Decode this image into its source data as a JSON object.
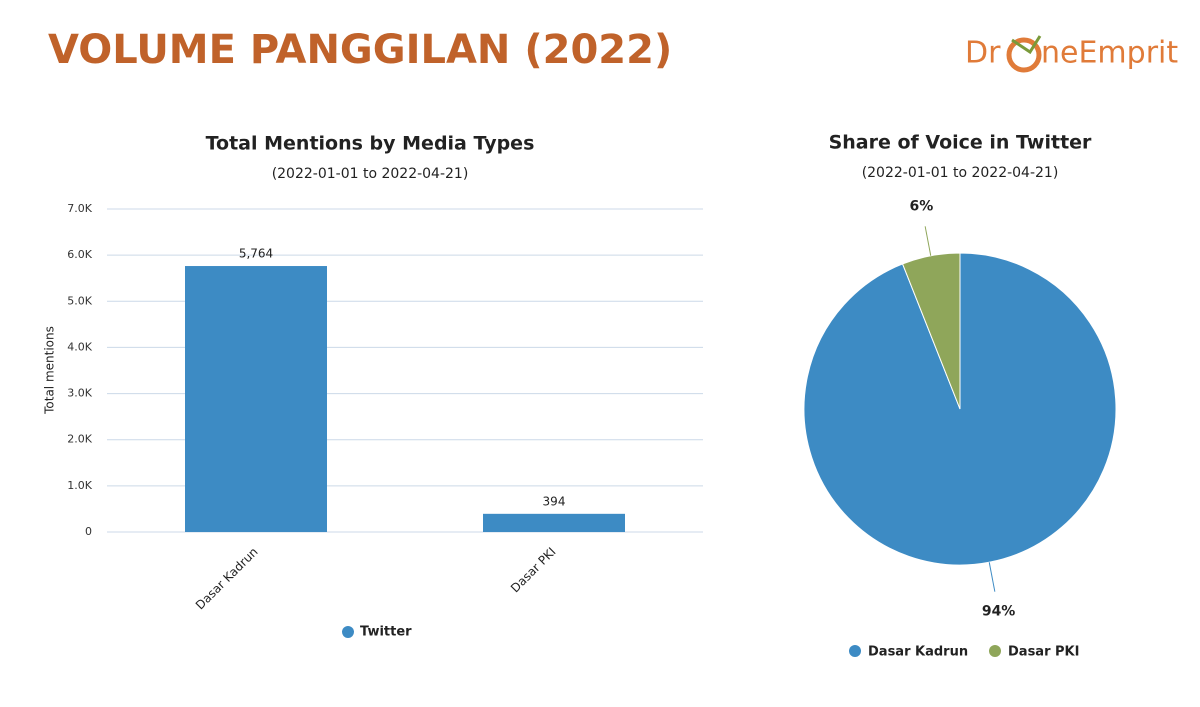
{
  "header": {
    "title": "VOLUME PANGGILAN (2022)",
    "logo_left": "Dr",
    "logo_right": "neEmprit"
  },
  "chart_data": [
    {
      "type": "bar",
      "title": "Total Mentions by Media Types",
      "subtitle": "(2022-01-01 to 2022-04-21)",
      "y_label": "Total mentions",
      "categories": [
        "Dasar Kadrun",
        "Dasar PKI"
      ],
      "series": [
        {
          "name": "Twitter",
          "color": "#3d8bc4",
          "values": [
            5764,
            394
          ],
          "value_labels": [
            "5,764",
            "394"
          ]
        }
      ],
      "ylim": [
        0,
        7000
      ],
      "yticks": [
        0,
        {
          "value": 1000,
          "label": "1.0K"
        },
        {
          "value": 2000,
          "label": "2.0K"
        },
        {
          "value": 3000,
          "label": "3.0K"
        },
        {
          "value": 4000,
          "label": "4.0K"
        },
        {
          "value": 5000,
          "label": "5.0K"
        },
        {
          "value": 6000,
          "label": "6.0K"
        },
        {
          "value": 7000,
          "label": "7.0K"
        }
      ],
      "grid": true
    },
    {
      "type": "pie",
      "title": "Share of Voice in Twitter",
      "subtitle": "(2022-01-01 to 2022-04-21)",
      "categories": [
        "Dasar Kadrun",
        "Dasar PKI"
      ],
      "values": [
        94,
        6
      ],
      "value_labels": [
        "94%",
        "6%"
      ],
      "colors": [
        "#3d8bc4",
        "#8fa65a"
      ]
    }
  ]
}
